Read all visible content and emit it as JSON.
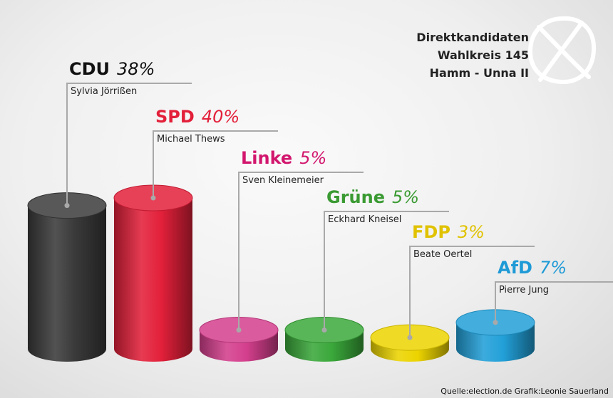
{
  "header": {
    "line1": "Direktkandidaten",
    "line2": "Wahlkreis 145",
    "line3": "Hamm - Unna II"
  },
  "source": "Quelle:election.de Grafik:Leonie Sauerland",
  "logo_icon": "ballot-cross-icon",
  "chart_data": {
    "type": "bar",
    "style": "3d-cylinder",
    "categories": [
      "CDU",
      "SPD",
      "Linke",
      "Grüne",
      "FDP",
      "AfD"
    ],
    "values": [
      38,
      40,
      5,
      5,
      3,
      7
    ],
    "value_labels": [
      "38%",
      "40%",
      "5%",
      "5%",
      "3%",
      "7%"
    ],
    "candidates": [
      "Sylvia Jörrißen",
      "Michael Thews",
      "Sven Kleinemeier",
      "Eckhard Kneisel",
      "Beate Oertel",
      "Pierre Jung"
    ],
    "colors": [
      "#3a3a3a",
      "#e3203a",
      "#d43f8d",
      "#3aa83a",
      "#ecd400",
      "#22a0d8"
    ],
    "label_colors": [
      "#111111",
      "#e3203a",
      "#d2166e",
      "#3a9a32",
      "#e0c200",
      "#1e9ad6"
    ]
  }
}
